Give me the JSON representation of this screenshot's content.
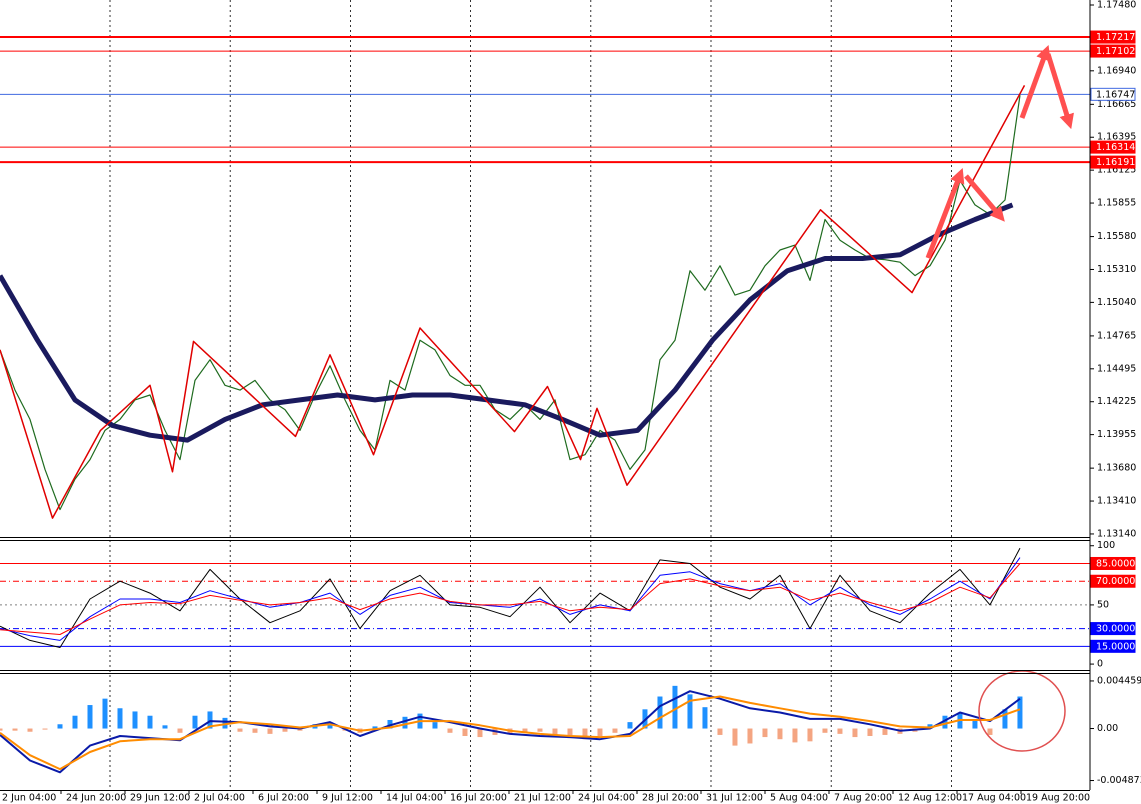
{
  "chart_data": [
    {
      "type": "line",
      "xlim": [
        0,
        72.67
      ],
      "ylim": [
        1.13115,
        1.17521
      ],
      "yticks": [
        {
          "value": 1.1748,
          "label": "1.17480"
        },
        {
          "value": 1.1694,
          "label": "1.16940"
        },
        1.16665,
        1.16395,
        1.16125,
        1.15855,
        {
          "value": 1.1558,
          "label": "1.15580"
        },
        {
          "value": 1.1531,
          "label": "1.15310"
        },
        {
          "value": 1.1504,
          "label": "1.15040"
        },
        1.14765,
        1.14495,
        1.14225,
        1.13955,
        {
          "value": 1.1368,
          "label": "1.13680"
        },
        {
          "value": 1.1341,
          "label": "1.13410"
        },
        {
          "value": 1.1314,
          "label": "1.13140"
        }
      ],
      "hlines": [
        {
          "value": 1.17217,
          "color": "#ff0000",
          "width": 2,
          "box": "#ff0000"
        },
        {
          "value": 1.17102,
          "color": "#ff0000",
          "width": 1,
          "box": "#ff0000"
        },
        {
          "value": 1.16747,
          "color": "#4169e1",
          "width": 1,
          "box": "#ffffff"
        },
        {
          "value": 1.16314,
          "color": "#ff0000",
          "width": 1,
          "box": "#ff0000"
        },
        {
          "value": 1.16191,
          "color": "#ff0000",
          "width": 2,
          "box": "#ff0000"
        }
      ],
      "series": [
        {
          "color": "#1f6b1f",
          "width": 1.2,
          "x": [
            0,
            1,
            2,
            3,
            4,
            5,
            6,
            7,
            8,
            9,
            10,
            11,
            12,
            13,
            14,
            15,
            16,
            17,
            18,
            19,
            20,
            21,
            22,
            23,
            24,
            25,
            26,
            27,
            28,
            29,
            30,
            31,
            32,
            33,
            34,
            35,
            36,
            37,
            38,
            39,
            40,
            41,
            42,
            43,
            44,
            45,
            46,
            47,
            48,
            49,
            50,
            51,
            52,
            53,
            54,
            55,
            56,
            57,
            58,
            59,
            60,
            61,
            62,
            63,
            64,
            65,
            66,
            67,
            68
          ],
          "values": [
            1.1465,
            1.1432,
            1.1408,
            1.1367,
            1.1334,
            1.1359,
            1.1375,
            1.1399,
            1.1408,
            1.1424,
            1.1428,
            1.1399,
            1.1375,
            1.144,
            1.1457,
            1.1436,
            1.1432,
            1.144,
            1.1424,
            1.1416,
            1.1399,
            1.1428,
            1.1452,
            1.1424,
            1.1399,
            1.1383,
            1.144,
            1.1432,
            1.1473,
            1.1465,
            1.1444,
            1.1436,
            1.1436,
            1.1416,
            1.1408,
            1.142,
            1.1408,
            1.1424,
            1.1375,
            1.1379,
            1.1399,
            1.1391,
            1.1367,
            1.1383,
            1.1457,
            1.1473,
            1.153,
            1.1514,
            1.1534,
            1.151,
            1.1514,
            1.1534,
            1.1547,
            1.1551,
            1.1522,
            1.1572,
            1.1555,
            1.1547,
            1.154,
            1.1539,
            1.1537,
            1.1526,
            1.1534,
            1.1555,
            1.1604,
            1.1584,
            1.1576,
            1.1588,
            1.1674
          ]
        },
        {
          "color": "#1a1a5e",
          "width": 5,
          "x": [
            0,
            2.5,
            5,
            7.5,
            10,
            12.5,
            15,
            17.5,
            20,
            22.5,
            25,
            27.5,
            30,
            32.5,
            35,
            37.5,
            40,
            42.5,
            45,
            47.5,
            50,
            52.5,
            55,
            57.5,
            60,
            62.5,
            65,
            67.5
          ],
          "values": [
            1.1526,
            1.1473,
            1.1424,
            1.1403,
            1.1395,
            1.1391,
            1.1408,
            1.142,
            1.1424,
            1.1428,
            1.1424,
            1.1428,
            1.1428,
            1.1424,
            1.142,
            1.1408,
            1.1395,
            1.1399,
            1.1432,
            1.1473,
            1.1506,
            1.153,
            1.154,
            1.154,
            1.1543,
            1.1559,
            1.1572,
            1.1584
          ]
        },
        {
          "color": "#e00000",
          "width": 1.5,
          "x": [
            0,
            3.5,
            6.7,
            10,
            11.5,
            12.9,
            19.7,
            22,
            24.9,
            28,
            34.3,
            36.5,
            38.7,
            39.8,
            41.8,
            54.7,
            60.8,
            68.3
          ],
          "values": [
            1.1465,
            1.1327,
            1.1399,
            1.1436,
            1.1365,
            1.1472,
            1.1394,
            1.1461,
            1.1379,
            1.1483,
            1.1398,
            1.1435,
            1.1375,
            1.1417,
            1.1354,
            1.158,
            1.1512,
            1.1682
          ]
        }
      ]
    },
    {
      "type": "line",
      "xlim": [
        0,
        72.67
      ],
      "ylim": [
        -5,
        104
      ],
      "yticks": [
        100,
        50,
        0
      ],
      "hlines": [
        {
          "value": 85,
          "label": "85.0000",
          "color": "#ff0000",
          "width": 1,
          "dash": "solid",
          "box": "#ff0000"
        },
        {
          "value": 70,
          "label": "70.0000",
          "color": "#ff0000",
          "width": 1,
          "dash": "dashdot",
          "box": "#ff0000"
        },
        {
          "value": 50,
          "color": "#808080",
          "width": 1,
          "dash": "dot"
        },
        {
          "value": 30,
          "label": "30.0000",
          "color": "#0000ff",
          "width": 1,
          "dash": "dashdot",
          "box": "#0000ff"
        },
        {
          "value": 15,
          "label": "15.0000",
          "color": "#0000ff",
          "width": 1,
          "dash": "solid",
          "box": "#0000ff"
        }
      ],
      "series": [
        {
          "color": "#000000",
          "width": 1,
          "x": [
            0,
            2,
            4,
            6,
            8,
            10,
            12,
            14,
            16,
            18,
            20,
            22,
            24,
            26,
            28,
            30,
            32,
            34,
            36,
            38,
            40,
            42,
            44,
            46,
            48,
            50,
            52,
            54,
            56,
            58,
            60,
            62,
            64,
            66,
            68
          ],
          "values": [
            32,
            20,
            14,
            55,
            70,
            60,
            45,
            80,
            55,
            35,
            45,
            72,
            30,
            62,
            75,
            50,
            48,
            40,
            65,
            35,
            60,
            45,
            88,
            85,
            65,
            55,
            75,
            30,
            75,
            45,
            35,
            60,
            80,
            50,
            98
          ]
        },
        {
          "color": "#0000ff",
          "width": 1,
          "x": [
            0,
            2,
            4,
            6,
            8,
            10,
            12,
            14,
            16,
            18,
            20,
            22,
            24,
            26,
            28,
            30,
            32,
            34,
            36,
            38,
            40,
            42,
            44,
            46,
            48,
            50,
            52,
            54,
            56,
            58,
            60,
            62,
            64,
            66,
            68
          ],
          "values": [
            30,
            24,
            20,
            40,
            55,
            55,
            52,
            62,
            55,
            48,
            52,
            60,
            42,
            58,
            65,
            52,
            50,
            48,
            55,
            42,
            50,
            45,
            75,
            78,
            68,
            62,
            68,
            50,
            65,
            50,
            42,
            55,
            70,
            55,
            90
          ]
        },
        {
          "color": "#ff0000",
          "width": 1,
          "x": [
            0,
            2,
            4,
            6,
            8,
            10,
            12,
            14,
            16,
            18,
            20,
            22,
            24,
            26,
            28,
            30,
            32,
            34,
            36,
            38,
            40,
            42,
            44,
            46,
            48,
            50,
            52,
            54,
            56,
            58,
            60,
            62,
            64,
            66,
            68
          ],
          "values": [
            29,
            27,
            25,
            38,
            50,
            52,
            51,
            58,
            54,
            50,
            52,
            56,
            46,
            55,
            60,
            53,
            50,
            50,
            53,
            45,
            48,
            46,
            68,
            72,
            66,
            62,
            65,
            54,
            60,
            52,
            45,
            52,
            65,
            56,
            85
          ]
        }
      ]
    },
    {
      "type": "line",
      "xlim": [
        0,
        72.67
      ],
      "ylim": [
        -0.00576,
        0.00511
      ],
      "yticks": [
        0.0044593,
        {
          "value": 0,
          "label": "0.00"
        },
        -0.004873
      ],
      "histogram": {
        "positive_color": "#1e90ff",
        "negative_color": "#f4a582",
        "x": [
          0,
          1,
          2,
          3,
          4,
          5,
          6,
          7,
          8,
          9,
          10,
          11,
          12,
          13,
          14,
          15,
          16,
          17,
          18,
          19,
          20,
          21,
          22,
          23,
          24,
          25,
          26,
          27,
          28,
          29,
          30,
          31,
          32,
          33,
          34,
          35,
          36,
          37,
          38,
          39,
          40,
          41,
          42,
          43,
          44,
          45,
          46,
          47,
          48,
          49,
          50,
          51,
          52,
          53,
          54,
          55,
          56,
          57,
          58,
          59,
          60,
          61,
          62,
          63,
          64,
          65,
          66,
          67,
          68
        ],
        "values": [
          -0.0002,
          -0.0002,
          -0.0003,
          -0.0001,
          0.0004,
          0.0012,
          0.0022,
          0.0028,
          0.0019,
          0.0016,
          0.0012,
          0.0003,
          -0.0004,
          0.0012,
          0.0016,
          0.001,
          -0.0003,
          -0.0004,
          -0.0005,
          -0.0003,
          -0.0002,
          0.0004,
          0.0006,
          -0.0002,
          -0.0004,
          0.0002,
          0.0008,
          0.0011,
          0.0014,
          0.0006,
          -0.0004,
          -0.0007,
          -0.0008,
          -0.0006,
          -0.0005,
          -0.0004,
          -0.0003,
          -0.0006,
          -0.0009,
          -0.001,
          -0.0007,
          -0.0004,
          0.0006,
          0.0018,
          0.003,
          0.004,
          0.0032,
          0.002,
          -0.0006,
          -0.0016,
          -0.0014,
          -0.0008,
          -0.001,
          -0.0013,
          -0.0012,
          -0.0004,
          -0.0005,
          -0.0008,
          -0.0007,
          -0.0006,
          -0.0005,
          -0.0003,
          0.0004,
          0.0012,
          0.0014,
          0.0008,
          -0.0006,
          0.0018,
          0.003
        ]
      },
      "series": [
        {
          "color": "#0a1aa8",
          "width": 2,
          "x": [
            0,
            2,
            4,
            6,
            8,
            10,
            12,
            14,
            16,
            18,
            20,
            22,
            24,
            26,
            28,
            30,
            32,
            34,
            36,
            38,
            40,
            42,
            44,
            46,
            48,
            50,
            52,
            54,
            56,
            58,
            60,
            62,
            64,
            66,
            68
          ],
          "values": [
            -0.0006,
            -0.003,
            -0.0041,
            -0.0016,
            -0.0007,
            -0.0009,
            -0.0011,
            0.0007,
            0.0006,
            0.0002,
            0,
            0.0006,
            -0.0007,
            0.0003,
            0.0011,
            0.0006,
            0,
            -0.0005,
            -0.0007,
            -0.0008,
            -0.001,
            -0.0005,
            0.0021,
            0.0035,
            0.0028,
            0.0019,
            0.0015,
            0.0009,
            0.0009,
            0.0004,
            -0.0002,
            0,
            0.0015,
            0.0007,
            0.0028
          ]
        },
        {
          "color": "#ff8c00",
          "width": 2,
          "x": [
            0,
            2,
            4,
            6,
            8,
            10,
            12,
            14,
            16,
            18,
            20,
            22,
            24,
            26,
            28,
            30,
            32,
            34,
            36,
            38,
            40,
            42,
            44,
            46,
            48,
            50,
            52,
            54,
            56,
            58,
            60,
            62,
            64,
            66,
            68
          ],
          "values": [
            -0.0004,
            -0.0025,
            -0.0038,
            -0.0022,
            -0.0012,
            -0.001,
            -0.001,
            0.0002,
            0.0006,
            0.0004,
            0.0001,
            0.0004,
            -0.0002,
            0.0001,
            0.0007,
            0.0007,
            0.0003,
            -0.0002,
            -0.0005,
            -0.0007,
            -0.0008,
            -0.0007,
            0.001,
            0.0026,
            0.003,
            0.0024,
            0.0019,
            0.0014,
            0.0011,
            0.0007,
            0.0002,
            0.0001,
            0.0008,
            0.0008,
            0.0018
          ]
        }
      ],
      "x_labels": [
        "2 Jun 04:00",
        "24 Jun 20:00",
        "29 Jun 12:00",
        "2 Jul 04:00",
        "6 Jul 20:00",
        "9 Jul 12:00",
        "14 Jul 04:00",
        "16 Jul 20:00",
        "21 Jul 12:00",
        "24 Jul 04:00",
        "28 Jul 20:00",
        "31 Jul 12:00",
        "5 Aug 04:00",
        "7 Aug 20:00",
        "12 Aug 12:00",
        "17 Aug 04:00",
        "19 Aug 20:00"
      ]
    }
  ]
}
